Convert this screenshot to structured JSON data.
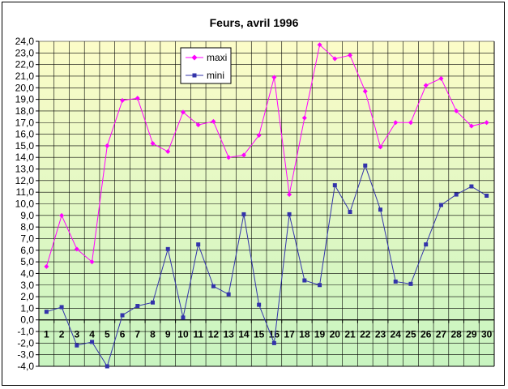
{
  "chart_data": {
    "type": "line",
    "title": "Feurs, avril 1996",
    "xlabel": "",
    "ylabel": "",
    "x": [
      1,
      2,
      3,
      4,
      5,
      6,
      7,
      8,
      9,
      10,
      11,
      12,
      13,
      14,
      15,
      16,
      17,
      18,
      19,
      20,
      21,
      22,
      23,
      24,
      25,
      26,
      27,
      28,
      29,
      30
    ],
    "x_tick_labels": [
      "1",
      "2",
      "3",
      "4",
      "5",
      "6",
      "7",
      "8",
      "9",
      "10",
      "11",
      "12",
      "13",
      "14",
      "15",
      "16",
      "17",
      "18",
      "19",
      "20",
      "21",
      "22",
      "23",
      "24",
      "25",
      "26",
      "27",
      "28",
      "29",
      "30"
    ],
    "ylim": [
      -4.0,
      24.0
    ],
    "y_ticks": [
      24,
      23,
      22,
      21,
      20,
      19,
      18,
      17,
      16,
      15,
      14,
      13,
      12,
      11,
      10,
      9,
      8,
      7,
      6,
      5,
      4,
      3,
      2,
      1,
      0,
      -1,
      -2,
      -3,
      -4
    ],
    "y_tick_labels": [
      "24,0",
      "23,0",
      "22,0",
      "21,0",
      "20,0",
      "19,0",
      "18,0",
      "17,0",
      "16,0",
      "15,0",
      "14,0",
      "13,0",
      "12,0",
      "11,0",
      "10,0",
      "9,0",
      "8,0",
      "7,0",
      "6,0",
      "5,0",
      "4,0",
      "3,0",
      "2,0",
      "1,0",
      "0,0",
      "-1,0",
      "-2,0",
      "-3,0",
      "-4,0"
    ],
    "grid": true,
    "legend_position": "top-left",
    "background_gradient": {
      "top": "#fcfcc8",
      "bottom": "#c8f4c0"
    },
    "series": [
      {
        "name": "maxi",
        "color": "#ff00ff",
        "marker": "diamond",
        "values": [
          4.6,
          9.0,
          6.1,
          5.0,
          15.0,
          18.9,
          19.1,
          15.2,
          14.5,
          17.9,
          16.8,
          17.1,
          14.0,
          14.2,
          15.9,
          20.9,
          10.8,
          17.4,
          23.7,
          22.5,
          22.8,
          19.7,
          14.9,
          17.0,
          17.0,
          20.2,
          20.8,
          18.0,
          16.7,
          17.0
        ]
      },
      {
        "name": "mini",
        "color": "#3333aa",
        "marker": "square",
        "values": [
          0.7,
          1.1,
          -2.2,
          -1.9,
          -4.0,
          0.4,
          1.2,
          1.5,
          6.1,
          0.2,
          6.5,
          2.9,
          2.2,
          9.1,
          1.3,
          -2.0,
          9.1,
          3.4,
          3.0,
          11.6,
          9.3,
          13.3,
          9.5,
          3.3,
          3.1,
          6.5,
          9.9,
          10.8,
          11.5,
          10.7
        ]
      }
    ]
  }
}
